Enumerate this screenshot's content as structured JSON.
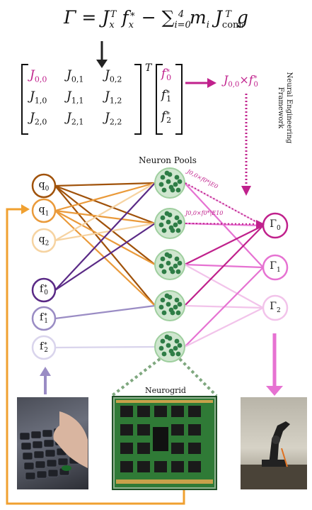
{
  "equation": {
    "lhs": "Γ",
    "eq": "=",
    "j1": "J",
    "j1_sub": "x",
    "j1_sup": "T",
    "f1": "f",
    "f1_sub": "x",
    "f1_sup": "∗",
    "minus": "−",
    "sum": "∑",
    "sum_sub": "i=0",
    "sum_sup": "4",
    "m": "m",
    "m_sub": "i",
    "j2": "J",
    "j2_sub": "com",
    "j2_subsub": "i",
    "j2_sup": "T",
    "g": "g"
  },
  "matrix": {
    "cells": [
      [
        "J",
        "0,0",
        "J",
        "0,1",
        "J",
        "0,2"
      ],
      [
        "J",
        "1,0",
        "J",
        "1,1",
        "J",
        "1,2"
      ],
      [
        "J",
        "2,0",
        "J",
        "2,1",
        "J",
        "2,2"
      ]
    ],
    "transpose": "T",
    "vector": [
      "f",
      "0",
      "f",
      "1",
      "f",
      "2"
    ],
    "vector_sup": "∗"
  },
  "result_label": {
    "j": "J",
    "j_sub": "0,0",
    "times": "×",
    "f": "f",
    "f_sub": "0",
    "f_sup": "∗"
  },
  "nef_label": [
    "Neural Engineering",
    "Framework"
  ],
  "pools_label": "Neuron Pools",
  "neurogrid_label": "Neurogrid",
  "flow_label_1": "J0,0×f0*|E0",
  "flow_label_2": "J0,0×f0*|E10",
  "inputs": [
    {
      "name": "q",
      "sub": "0",
      "sup": "",
      "color": "#a0520a"
    },
    {
      "name": "q",
      "sub": "1",
      "sup": "",
      "color": "#ea9a3a"
    },
    {
      "name": "q",
      "sub": "2",
      "sup": "",
      "color": "#f6d3a1"
    },
    {
      "name": "f",
      "sub": "0",
      "sup": "∗",
      "color": "#5a2a86"
    },
    {
      "name": "f",
      "sub": "1",
      "sup": "∗",
      "color": "#9a8cc4"
    },
    {
      "name": "f",
      "sub": "2",
      "sup": "∗",
      "color": "#d9d4ec"
    }
  ],
  "outputs": [
    {
      "name": "Γ",
      "sub": "0",
      "color": "#c0218c"
    },
    {
      "name": "Γ",
      "sub": "1",
      "color": "#e672d2"
    },
    {
      "name": "Γ",
      "sub": "2",
      "color": "#f2c3ea"
    }
  ],
  "colors": {
    "magenta": "#c0218c",
    "orange": "#f0a030",
    "purple": "#9a8cc4",
    "pool_fill": "#cfe6cf",
    "pool_dot": "#2e7d46",
    "dotted_green": "#7fa87f"
  }
}
